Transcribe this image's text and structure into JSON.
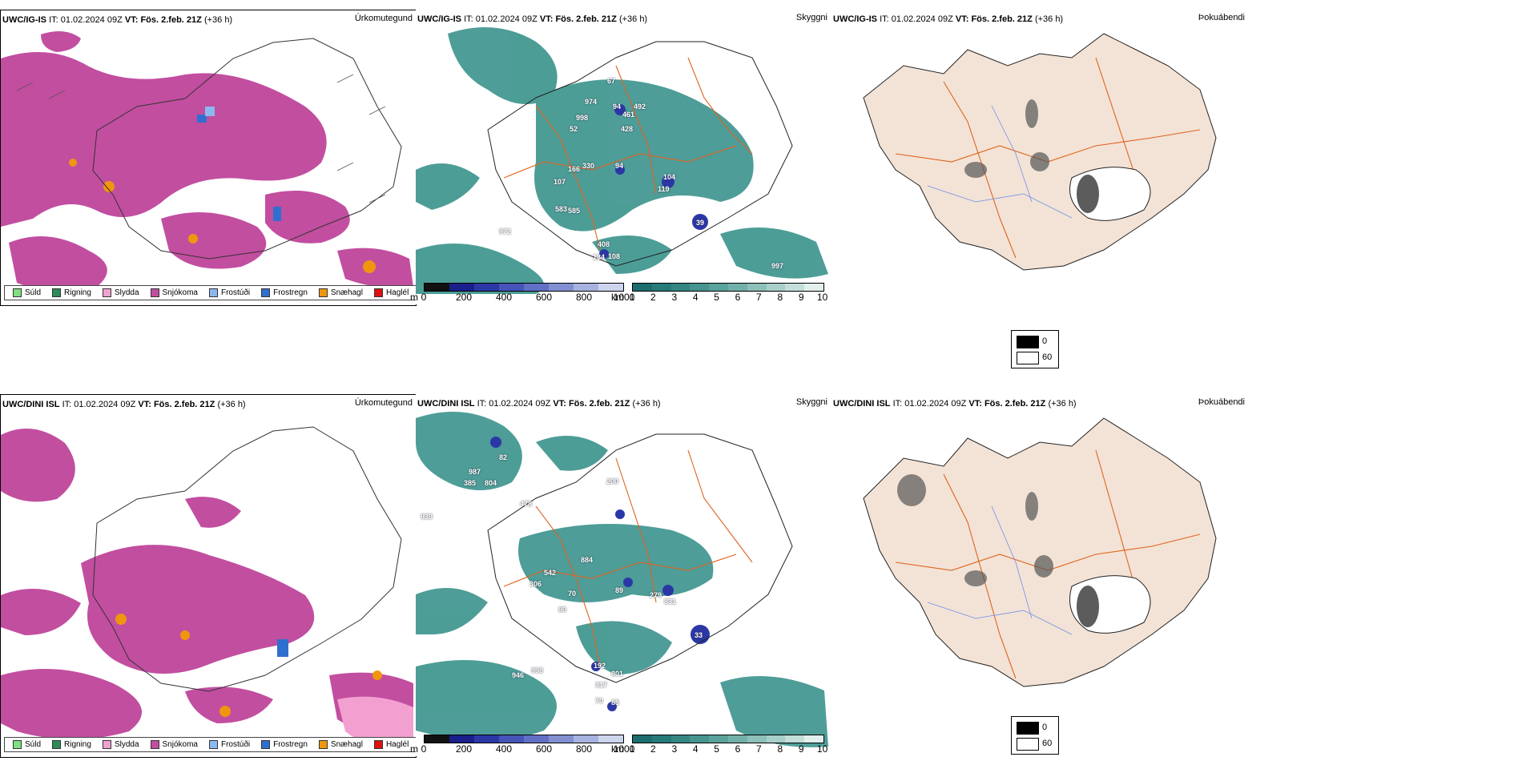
{
  "rows": [
    {
      "model": "UWC/IG-IS",
      "it_label": "IT:",
      "it_value": "01.02.2024 09Z",
      "vt_label": "VT:",
      "vt_value": "Fös. 2.feb. 21Z",
      "lead": "(+36 h)",
      "heights": [
        "974",
        "94",
        "461",
        "492",
        "998",
        "52",
        "428",
        "166",
        "330",
        "94",
        "107",
        "104",
        "119",
        "583",
        "585",
        "972",
        "39",
        "408",
        "134",
        "108",
        "997",
        "67"
      ]
    },
    {
      "model": "UWC/DINI ISL",
      "it_label": "IT:",
      "it_value": "01.02.2024 09Z",
      "vt_label": "VT:",
      "vt_value": "Fös. 2.feb. 21Z",
      "lead": "(+36 h)",
      "heights": [
        "82",
        "987",
        "385",
        "804",
        "478",
        "200",
        "939",
        "884",
        "542",
        "306",
        "70",
        "89",
        "279",
        "80",
        "831",
        "192",
        "946",
        "998",
        "801",
        "317",
        "33",
        "70",
        "85"
      ]
    }
  ],
  "panel_labels": {
    "precip": "Úrkomutegund",
    "visibility": "Skyggni",
    "fog": "Þokuábendi"
  },
  "precip_legend": [
    {
      "label": "Súld",
      "color": "#7fe07f"
    },
    {
      "label": "Rigning",
      "color": "#2e8b57"
    },
    {
      "label": "Slydda",
      "color": "#f2a0d0"
    },
    {
      "label": "Snjókoma",
      "color": "#c24ea0"
    },
    {
      "label": "Frostúði",
      "color": "#8cb8f0"
    },
    {
      "label": "Frostregn",
      "color": "#2f6fcf"
    },
    {
      "label": "Snæhagl",
      "color": "#f0960e"
    },
    {
      "label": "Haglél",
      "color": "#e01010"
    }
  ],
  "cloudbase_bar": {
    "unit": "m",
    "ticks": [
      "0",
      "200",
      "400",
      "600",
      "800",
      "1000"
    ],
    "colors": [
      "#111111",
      "#1a1f8a",
      "#2c37a6",
      "#4654b8",
      "#6170c4",
      "#8290d2",
      "#a7b2e0",
      "#cdd4ee"
    ]
  },
  "visibility_bar": {
    "unit": "km",
    "ticks": [
      "1",
      "2",
      "3",
      "4",
      "5",
      "6",
      "7",
      "8",
      "9",
      "10"
    ],
    "colors": [
      "#1c6e6e",
      "#267a78",
      "#348783",
      "#45948f",
      "#5aa29c",
      "#72b1aa",
      "#8cc0b9",
      "#a8cfc9",
      "#c4dfda",
      "#e2efec"
    ]
  },
  "fog_legend": {
    "black": "0",
    "white": "60"
  },
  "colors": {
    "snow": "#c24ea0",
    "vis": "#2f8c86",
    "land_fog": "#f3e3d6",
    "roads": "#e0631e",
    "rivers": "#6f8fe8"
  }
}
